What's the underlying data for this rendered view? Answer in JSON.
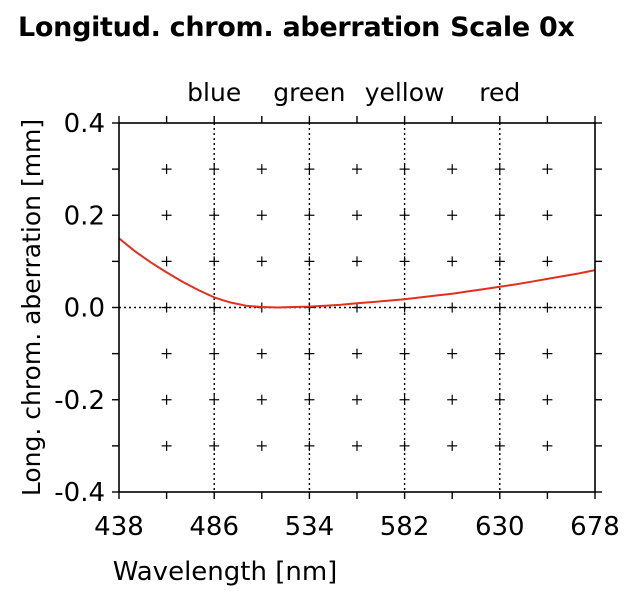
{
  "header": {
    "title": "Longitud. chrom. aberration",
    "scale_label": "Scale 0x"
  },
  "chart_data": {
    "type": "line",
    "xlabel": "Wavelength [nm]",
    "ylabel": "Long. chrom. aberration [mm]",
    "xlim": [
      438,
      678
    ],
    "ylim": [
      -0.4,
      0.4
    ],
    "x_ticks": [
      "438",
      "486",
      "534",
      "582",
      "630",
      "678"
    ],
    "y_ticks": [
      "0.4",
      "0.2",
      "0.0",
      "-0.2",
      "-0.4"
    ],
    "color_bands": [
      {
        "label": "blue",
        "x": 486
      },
      {
        "label": "green",
        "x": 534
      },
      {
        "label": "yellow",
        "x": 582
      },
      {
        "label": "red",
        "x": 630
      }
    ],
    "grid": "plus-markers",
    "series": [
      {
        "color": "#e03020",
        "x": [
          438,
          446,
          454,
          462,
          470,
          478,
          486,
          494,
          502,
          510,
          518,
          526,
          534,
          542,
          550,
          558,
          566,
          574,
          582,
          590,
          598,
          606,
          614,
          622,
          630,
          638,
          646,
          654,
          662,
          670,
          678
        ],
        "y": [
          0.15,
          0.122,
          0.098,
          0.076,
          0.056,
          0.038,
          0.022,
          0.011,
          0.004,
          0.001,
          0.0,
          0.001,
          0.002,
          0.004,
          0.006,
          0.009,
          0.012,
          0.015,
          0.018,
          0.022,
          0.026,
          0.03,
          0.035,
          0.04,
          0.045,
          0.05,
          0.056,
          0.062,
          0.068,
          0.074,
          0.081
        ]
      }
    ]
  }
}
